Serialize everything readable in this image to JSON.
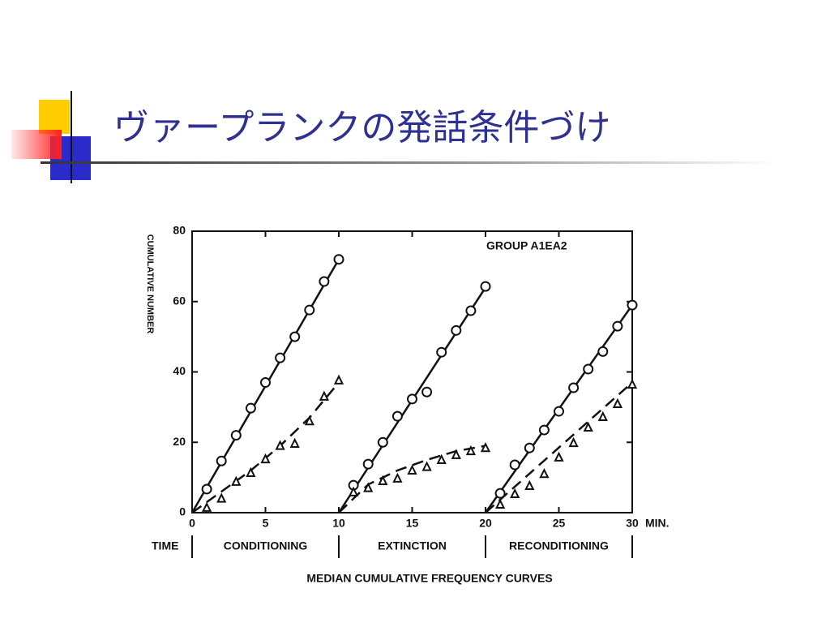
{
  "title": "ヴァープランクの発話条件づけ",
  "chart_data": {
    "type": "scatter",
    "ylabel": "CUMULATIVE NUMBER",
    "annotation": "GROUP A1EA2",
    "xunit": "MIN.",
    "time_label": "TIME",
    "phases": [
      "CONDITIONING",
      "EXTINCTION",
      "RECONDITIONING"
    ],
    "caption": "MEDIAN CUMULATIVE FREQUENCY CURVES",
    "xlim": [
      0,
      30
    ],
    "xticks": [
      0,
      5,
      10,
      15,
      20,
      25,
      30
    ],
    "ylim": [
      0,
      80
    ],
    "yticks": [
      0,
      20,
      40,
      60,
      80
    ],
    "color": "#111111",
    "series": [
      {
        "marker": "circle",
        "x": [
          1,
          2,
          3,
          4,
          5,
          6,
          7,
          8,
          9,
          10
        ],
        "values": [
          6.7,
          14.7,
          22,
          29.7,
          37,
          44,
          50,
          57.6,
          65.7,
          72
        ]
      },
      {
        "marker": "triangle",
        "x": [
          1,
          2,
          3,
          4,
          5,
          6,
          7,
          8,
          9,
          10
        ],
        "values": [
          1.4,
          4,
          8.8,
          11.3,
          15.2,
          19,
          19.6,
          26,
          33,
          37.6
        ]
      },
      {
        "marker": "circle",
        "x": [
          11,
          12,
          13,
          14,
          15,
          16,
          17,
          18,
          19,
          20
        ],
        "values": [
          7.8,
          13.8,
          20,
          27.4,
          32.3,
          34.3,
          45.6,
          51.8,
          57.4,
          64.3
        ]
      },
      {
        "marker": "triangle",
        "x": [
          11,
          12,
          13,
          14,
          15,
          16,
          17,
          18,
          19,
          20
        ],
        "values": [
          5.8,
          7,
          9,
          9.7,
          12,
          13,
          15,
          16.4,
          17.5,
          18.4
        ]
      },
      {
        "marker": "circle",
        "x": [
          21,
          22,
          23,
          24,
          25,
          26,
          27,
          28,
          29,
          30
        ],
        "values": [
          5.5,
          13.6,
          18.4,
          23.5,
          28.8,
          35.5,
          40.8,
          45.8,
          53,
          59
        ]
      },
      {
        "marker": "triangle",
        "x": [
          21,
          22,
          23,
          24,
          25,
          26,
          27,
          28,
          29,
          30
        ],
        "values": [
          2.3,
          5.3,
          7.6,
          11,
          15.7,
          19.8,
          24.2,
          27.2,
          30.9,
          36.4
        ]
      }
    ],
    "curves": [
      {
        "dashed": false,
        "x": [
          0,
          10
        ],
        "values": [
          0,
          72
        ]
      },
      {
        "dashed": true,
        "x": [
          0,
          2,
          4,
          6,
          8,
          10
        ],
        "values": [
          0,
          6,
          12,
          19,
          27,
          37
        ]
      },
      {
        "dashed": false,
        "x": [
          10,
          20
        ],
        "values": [
          0,
          64
        ]
      },
      {
        "dashed": true,
        "x": [
          10,
          12,
          14,
          16,
          18,
          20
        ],
        "values": [
          0,
          8,
          12,
          15,
          17.5,
          19
        ]
      },
      {
        "dashed": false,
        "x": [
          20,
          30
        ],
        "values": [
          0,
          59
        ]
      },
      {
        "dashed": true,
        "x": [
          20,
          30
        ],
        "values": [
          0,
          37
        ]
      }
    ]
  }
}
